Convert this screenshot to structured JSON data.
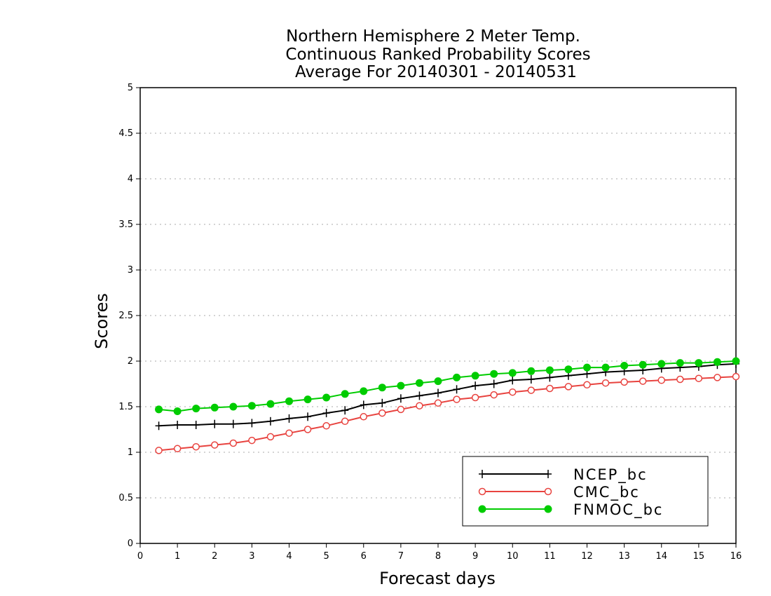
{
  "chart_data": {
    "type": "line",
    "title": [
      "Northern Hemisphere 2 Meter Temp.",
      "Continuous Ranked Probability Scores",
      "Average For 20140301 - 20140531"
    ],
    "xlabel": "Forecast days",
    "ylabel": "Scores",
    "xlim": [
      0,
      16
    ],
    "ylim": [
      0,
      5
    ],
    "xticks": [
      0,
      1,
      2,
      3,
      4,
      5,
      6,
      7,
      8,
      9,
      10,
      11,
      12,
      13,
      14,
      15,
      16
    ],
    "xtick_labels": [
      "0",
      "1",
      "2",
      "3",
      "4",
      "5",
      "6",
      "7",
      "8",
      "9",
      "10",
      "11",
      "12",
      "13",
      "14",
      "15",
      "16"
    ],
    "yticks": [
      0,
      0.5,
      1,
      1.5,
      2,
      2.5,
      3,
      3.5,
      4,
      4.5,
      5
    ],
    "ytick_labels": [
      "0",
      "0.5",
      "1",
      "1.5",
      "2",
      "2.5",
      "3",
      "3.5",
      "4",
      "4.5",
      "5"
    ],
    "grid": "horizontal dotted",
    "legend_position": "bottom-right",
    "x": [
      0.5,
      1,
      1.5,
      2,
      2.5,
      3,
      3.5,
      4,
      4.5,
      5,
      5.5,
      6,
      6.5,
      7,
      7.5,
      8,
      8.5,
      9,
      9.5,
      10,
      10.5,
      11,
      11.5,
      12,
      12.5,
      13,
      13.5,
      14,
      14.5,
      15,
      15.5,
      16
    ],
    "series": [
      {
        "name": "NCEP_bc",
        "color": "#000000",
        "marker": "plus",
        "values": [
          1.29,
          1.3,
          1.3,
          1.31,
          1.31,
          1.32,
          1.34,
          1.37,
          1.39,
          1.43,
          1.46,
          1.52,
          1.54,
          1.59,
          1.62,
          1.65,
          1.69,
          1.73,
          1.75,
          1.79,
          1.8,
          1.82,
          1.84,
          1.86,
          1.88,
          1.89,
          1.9,
          1.92,
          1.93,
          1.94,
          1.96,
          1.97
        ]
      },
      {
        "name": "CMC_bc",
        "color": "#e8433f",
        "marker": "open-circle",
        "values": [
          1.02,
          1.04,
          1.06,
          1.08,
          1.1,
          1.13,
          1.17,
          1.21,
          1.25,
          1.29,
          1.34,
          1.39,
          1.43,
          1.47,
          1.51,
          1.54,
          1.58,
          1.6,
          1.63,
          1.66,
          1.68,
          1.7,
          1.72,
          1.74,
          1.76,
          1.77,
          1.78,
          1.79,
          1.8,
          1.81,
          1.82,
          1.83
        ]
      },
      {
        "name": "FNMOC_bc",
        "color": "#00cc00",
        "marker": "filled-circle",
        "values": [
          1.47,
          1.45,
          1.48,
          1.49,
          1.5,
          1.51,
          1.53,
          1.56,
          1.58,
          1.6,
          1.64,
          1.67,
          1.71,
          1.73,
          1.76,
          1.78,
          1.82,
          1.84,
          1.86,
          1.87,
          1.89,
          1.9,
          1.91,
          1.93,
          1.93,
          1.95,
          1.96,
          1.97,
          1.98,
          1.98,
          1.99,
          2.0
        ]
      }
    ]
  }
}
